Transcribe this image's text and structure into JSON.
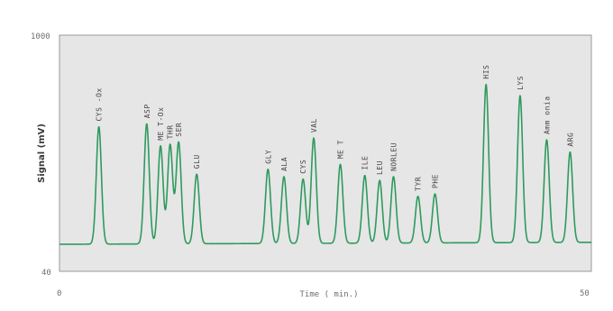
{
  "chart_data": {
    "type": "line",
    "title": "",
    "xlabel": "Time ( min.)",
    "ylabel": "Signal (mV)",
    "xlim": [
      0,
      50
    ],
    "ylim": [
      40,
      1000
    ],
    "x_tick_labels": [
      "0",
      "50"
    ],
    "y_tick_labels": [
      "1000",
      "40"
    ],
    "grid": false,
    "legend": "none",
    "colors": {
      "trace": "#2e9a5e",
      "plot_bg": "#e6e6e6",
      "frame": "#9a9a9a",
      "text": "#555555"
    },
    "baseline": 150,
    "peaks": [
      {
        "label": "CYS -Ox",
        "time": 3.7,
        "signal": 628
      },
      {
        "label": "ASP",
        "time": 8.2,
        "signal": 640
      },
      {
        "label": "ME T-Ox",
        "time": 9.5,
        "signal": 550
      },
      {
        "label": "THR",
        "time": 10.4,
        "signal": 555
      },
      {
        "label": "SER",
        "time": 11.2,
        "signal": 565
      },
      {
        "label": "GLU",
        "time": 12.9,
        "signal": 435
      },
      {
        "label": "GLY",
        "time": 19.6,
        "signal": 455
      },
      {
        "label": "ALA",
        "time": 21.1,
        "signal": 425
      },
      {
        "label": "CYS",
        "time": 22.9,
        "signal": 415
      },
      {
        "label": "VAL",
        "time": 23.9,
        "signal": 582
      },
      {
        "label": "ME T",
        "time": 26.4,
        "signal": 475
      },
      {
        "label": "ILE",
        "time": 28.7,
        "signal": 430
      },
      {
        "label": "LEU",
        "time": 30.1,
        "signal": 410
      },
      {
        "label": "NORLEU",
        "time": 31.4,
        "signal": 425
      },
      {
        "label": "TYR",
        "time": 33.7,
        "signal": 345
      },
      {
        "label": "PHE",
        "time": 35.3,
        "signal": 355
      },
      {
        "label": "HIS",
        "time": 40.1,
        "signal": 800
      },
      {
        "label": "LYS",
        "time": 43.3,
        "signal": 755
      },
      {
        "label": "Amm onia",
        "time": 45.8,
        "signal": 575
      },
      {
        "label": "ARG",
        "time": 48.0,
        "signal": 525
      }
    ]
  }
}
